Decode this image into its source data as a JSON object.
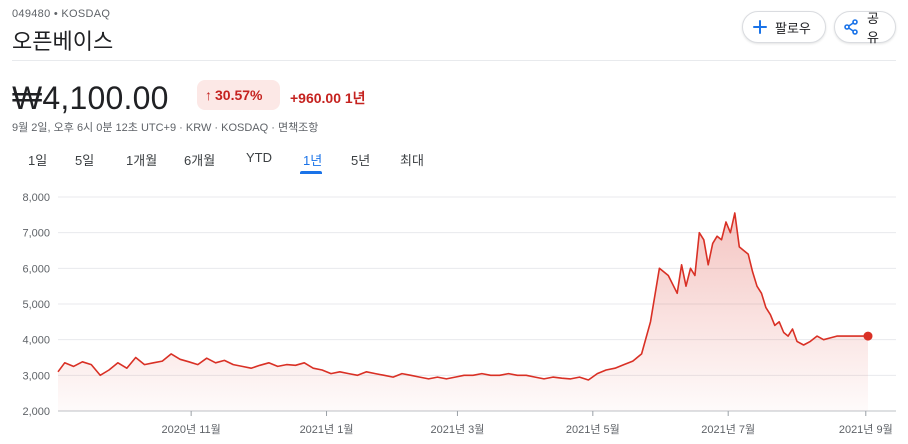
{
  "header": {
    "ticker": "049480 • KOSDAQ",
    "company": "오픈베이스",
    "follow_label": "팔로우",
    "share_label": "공유",
    "follow_icon": "plus-icon",
    "share_icon": "share-icon"
  },
  "quote": {
    "price": "₩4,100.00",
    "change_pct": "30.57%",
    "change_abs": "+960.00 1년",
    "meta": "9월 2일, 오후 6시 0분 12초 UTC+9 · KRW · KOSDAQ · 면책조항",
    "positive_color": "#c5221f"
  },
  "tabs": [
    {
      "label": "1일",
      "active": false
    },
    {
      "label": "5일",
      "active": false
    },
    {
      "label": "1개월",
      "active": false
    },
    {
      "label": "6개월",
      "active": false
    },
    {
      "label": "YTD",
      "active": false
    },
    {
      "label": "1년",
      "active": true
    },
    {
      "label": "5년",
      "active": false
    },
    {
      "label": "최대",
      "active": false
    }
  ],
  "chart_data": {
    "type": "area",
    "title": "",
    "xlabel": "",
    "ylabel": "",
    "ylim": [
      2000,
      8000
    ],
    "xlim": [
      "2020-09-02",
      "2021-09-02"
    ],
    "y_ticks": [
      2000,
      3000,
      4000,
      5000,
      6000,
      7000,
      8000
    ],
    "y_tick_labels": [
      "2,000",
      "3,000",
      "4,000",
      "5,000",
      "6,000",
      "7,000",
      "8,000"
    ],
    "x_ticks": [
      {
        "date": "2020-11-01",
        "label": "2020년 11월"
      },
      {
        "date": "2021-01-01",
        "label": "2021년 1월"
      },
      {
        "date": "2021-03-01",
        "label": "2021년 3월"
      },
      {
        "date": "2021-05-01",
        "label": "2021년 5월"
      },
      {
        "date": "2021-07-01",
        "label": "2021년 7월"
      },
      {
        "date": "2021-09-01",
        "label": "2021년 9월"
      }
    ],
    "grid": true,
    "line_color": "#d93025",
    "series": [
      {
        "x": [
          "2020-09-02",
          "2020-09-05",
          "2020-09-09",
          "2020-09-13",
          "2020-09-17",
          "2020-09-21",
          "2020-09-25",
          "2020-09-29",
          "2020-10-03",
          "2020-10-07",
          "2020-10-11",
          "2020-10-15",
          "2020-10-19",
          "2020-10-23",
          "2020-10-27",
          "2020-10-31",
          "2020-11-04",
          "2020-11-08",
          "2020-11-12",
          "2020-11-16",
          "2020-11-20",
          "2020-11-24",
          "2020-11-28",
          "2020-12-02",
          "2020-12-06",
          "2020-12-10",
          "2020-12-14",
          "2020-12-18",
          "2020-12-22",
          "2020-12-26",
          "2020-12-30",
          "2021-01-03",
          "2021-01-07",
          "2021-01-11",
          "2021-01-15",
          "2021-01-19",
          "2021-01-23",
          "2021-01-27",
          "2021-01-31",
          "2021-02-04",
          "2021-02-08",
          "2021-02-12",
          "2021-02-16",
          "2021-02-20",
          "2021-02-24",
          "2021-02-28",
          "2021-03-04",
          "2021-03-08",
          "2021-03-12",
          "2021-03-16",
          "2021-03-20",
          "2021-03-24",
          "2021-03-28",
          "2021-04-01",
          "2021-04-05",
          "2021-04-09",
          "2021-04-13",
          "2021-04-17",
          "2021-04-21",
          "2021-04-25",
          "2021-04-29",
          "2021-05-03",
          "2021-05-07",
          "2021-05-11",
          "2021-05-15",
          "2021-05-19",
          "2021-05-23",
          "2021-05-27",
          "2021-05-31",
          "2021-06-04",
          "2021-06-08",
          "2021-06-10",
          "2021-06-12",
          "2021-06-14",
          "2021-06-16",
          "2021-06-18",
          "2021-06-20",
          "2021-06-22",
          "2021-06-24",
          "2021-06-26",
          "2021-06-28",
          "2021-06-30",
          "2021-07-02",
          "2021-07-04",
          "2021-07-06",
          "2021-07-08",
          "2021-07-10",
          "2021-07-12",
          "2021-07-14",
          "2021-07-16",
          "2021-07-18",
          "2021-07-20",
          "2021-07-22",
          "2021-07-24",
          "2021-07-26",
          "2021-07-28",
          "2021-07-30",
          "2021-08-01",
          "2021-08-04",
          "2021-08-07",
          "2021-08-10",
          "2021-08-13",
          "2021-08-16",
          "2021-08-19",
          "2021-08-22",
          "2021-08-25",
          "2021-08-28",
          "2021-08-30",
          "2021-09-02"
        ],
        "values": [
          3100,
          3350,
          3250,
          3380,
          3300,
          3000,
          3150,
          3350,
          3200,
          3500,
          3300,
          3350,
          3400,
          3600,
          3450,
          3380,
          3300,
          3480,
          3350,
          3420,
          3300,
          3250,
          3200,
          3280,
          3350,
          3250,
          3300,
          3280,
          3350,
          3200,
          3150,
          3050,
          3100,
          3050,
          3000,
          3100,
          3050,
          3000,
          2950,
          3050,
          3000,
          2950,
          2900,
          2950,
          2900,
          2950,
          3000,
          3000,
          3050,
          3000,
          3000,
          3050,
          3000,
          3000,
          2950,
          2900,
          2950,
          2920,
          2900,
          2950,
          2870,
          3050,
          3150,
          3200,
          3300,
          3400,
          3600,
          4500,
          6000,
          5800,
          5300,
          6100,
          5500,
          6000,
          5800,
          7000,
          6800,
          6100,
          6700,
          6900,
          6800,
          7300,
          7000,
          7550,
          6600,
          6500,
          6400,
          5900,
          5500,
          5300,
          4900,
          4700,
          4400,
          4500,
          4200,
          4100,
          4300,
          3950,
          3850,
          3950,
          4100,
          4000,
          4050,
          4100,
          4100,
          4100,
          4100,
          4100,
          4100
        ],
        "name": ""
      }
    ],
    "last_point": {
      "date": "2021-09-02",
      "value": 4100
    }
  }
}
